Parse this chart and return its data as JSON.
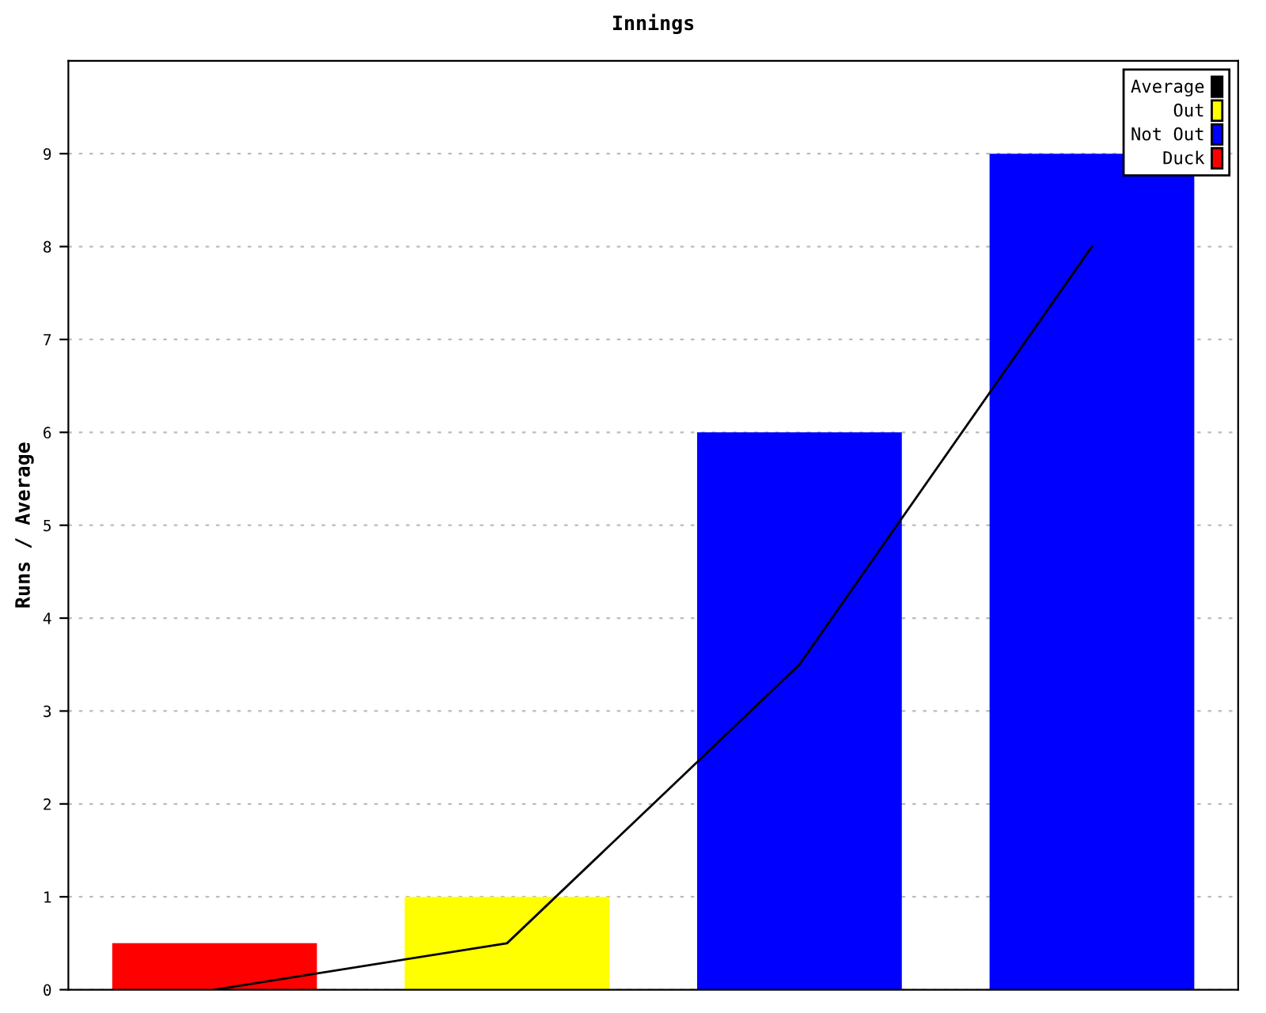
{
  "chart_data": {
    "type": "bar",
    "title": "Innings",
    "ylabel": "Runs / Average",
    "categories": [
      null,
      null,
      null,
      null
    ],
    "series": [
      {
        "name": "Average",
        "type": "line",
        "color": "#000000",
        "values": [
          0,
          0.5,
          3.5,
          8
        ]
      },
      {
        "name": "Out",
        "color": "#ffff00",
        "values": [
          null,
          1,
          null,
          null
        ]
      },
      {
        "name": "Not Out",
        "color": "#0000ff",
        "values": [
          null,
          null,
          6,
          9
        ]
      },
      {
        "name": "Duck",
        "color": "#ff0000",
        "values": [
          0.5,
          null,
          null,
          null
        ]
      }
    ],
    "ylim": [
      0,
      10
    ],
    "yticks": [
      0,
      1,
      2,
      3,
      4,
      5,
      6,
      7,
      8,
      9
    ],
    "grid": "y",
    "legend": "top right",
    "marker": "none",
    "line_style": "solid"
  }
}
